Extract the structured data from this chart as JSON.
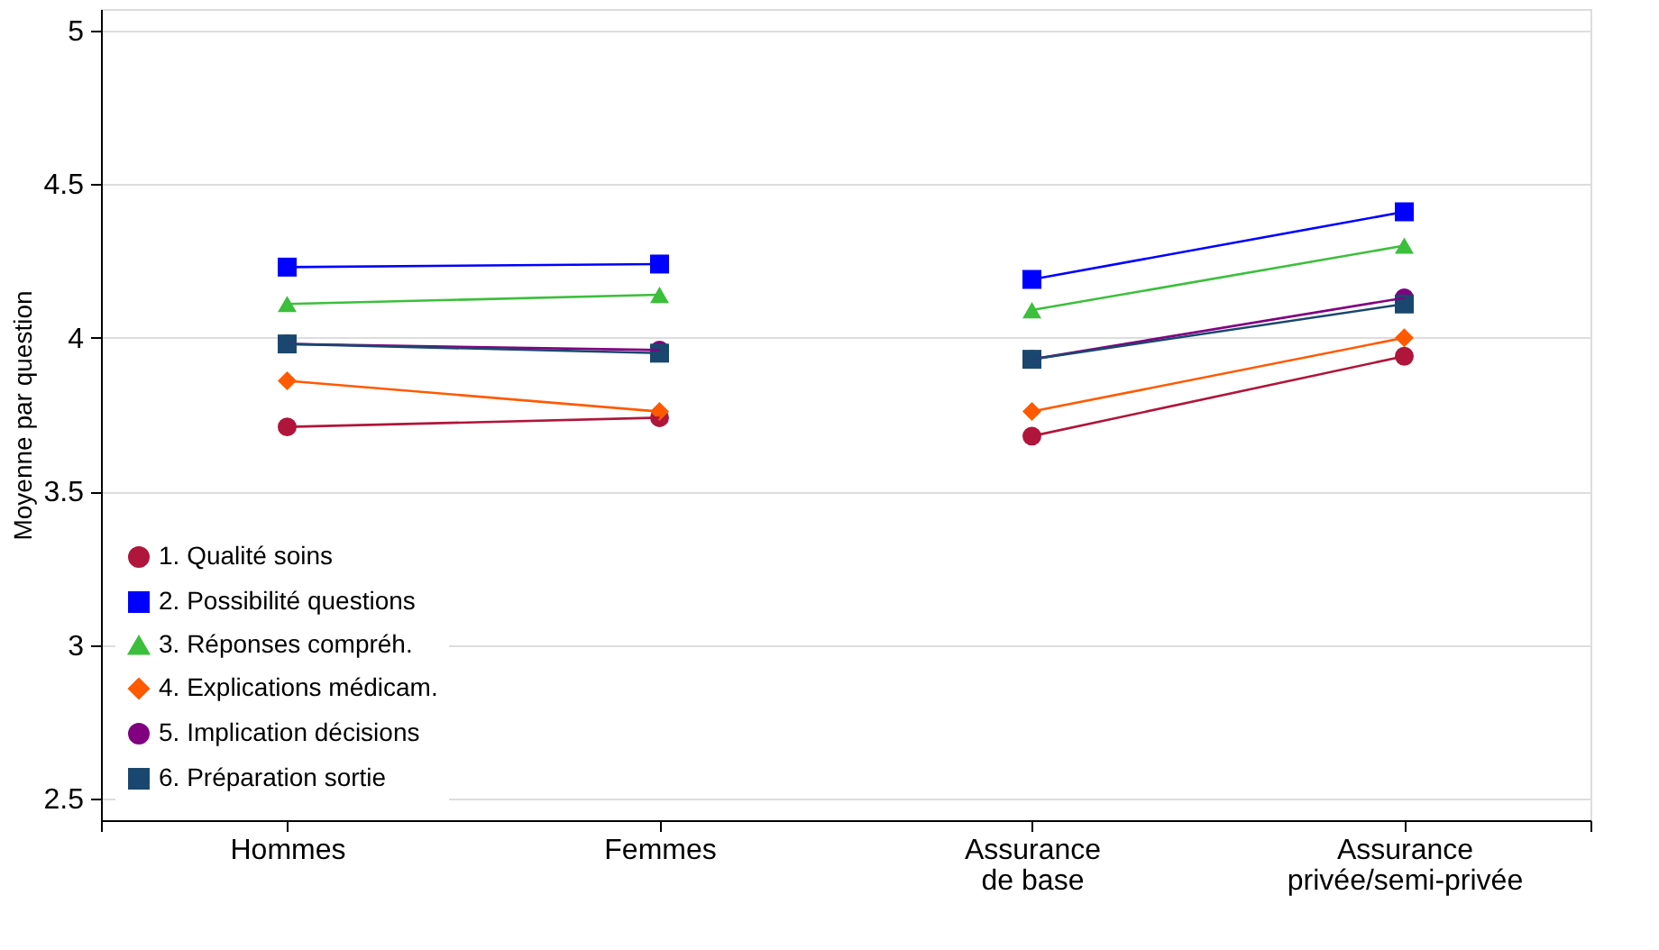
{
  "chart_data": {
    "type": "line",
    "ylabel": "Moyenne par question",
    "categories": [
      "Hommes",
      "Femmes",
      "Assurance de base",
      "Assurance privée/semi-privée"
    ],
    "ylim": [
      2.43,
      5.07
    ],
    "yticks": [
      2.5,
      3,
      3.5,
      4,
      4.5,
      5
    ],
    "grid": "y",
    "legend": "bottom left",
    "series": [
      {
        "name": "1. Qualité soins",
        "color": "#b0153b",
        "marker": "circle",
        "values": [
          3.71,
          3.74,
          null,
          null
        ]
      },
      {
        "name": "2. Possibilité questions",
        "color": "#0000ff",
        "marker": "square",
        "values": [
          4.23,
          4.24,
          null,
          null
        ]
      },
      {
        "name": "3. Réponses compréh.",
        "color": "#3cbf3c",
        "marker": "triangle",
        "values": [
          4.11,
          4.14,
          null,
          null
        ]
      },
      {
        "name": "4. Explications médicam.",
        "color": "#ff5a00",
        "marker": "diamond",
        "values": [
          3.86,
          3.76,
          null,
          null
        ]
      },
      {
        "name": "5. Implication décisions",
        "color": "#800080",
        "marker": "circle",
        "values": [
          3.98,
          3.96,
          null,
          null
        ]
      },
      {
        "name": "6. Préparation sortie",
        "color": "#1a476f",
        "marker": "square",
        "values": [
          3.98,
          3.95,
          null,
          null
        ]
      },
      {
        "color": "#b0153b",
        "marker": "circle",
        "values": [
          null,
          null,
          3.68,
          3.94
        ]
      },
      {
        "color": "#0000ff",
        "marker": "square",
        "values": [
          null,
          null,
          4.19,
          4.41
        ]
      },
      {
        "color": "#3cbf3c",
        "marker": "triangle",
        "values": [
          null,
          null,
          4.09,
          4.3
        ]
      },
      {
        "color": "#ff5a00",
        "marker": "diamond",
        "values": [
          null,
          null,
          3.76,
          4.0
        ]
      },
      {
        "color": "#800080",
        "marker": "circle",
        "values": [
          null,
          null,
          3.93,
          4.13
        ]
      },
      {
        "color": "#1a476f",
        "marker": "square",
        "values": [
          null,
          null,
          3.93,
          4.11
        ]
      }
    ]
  }
}
